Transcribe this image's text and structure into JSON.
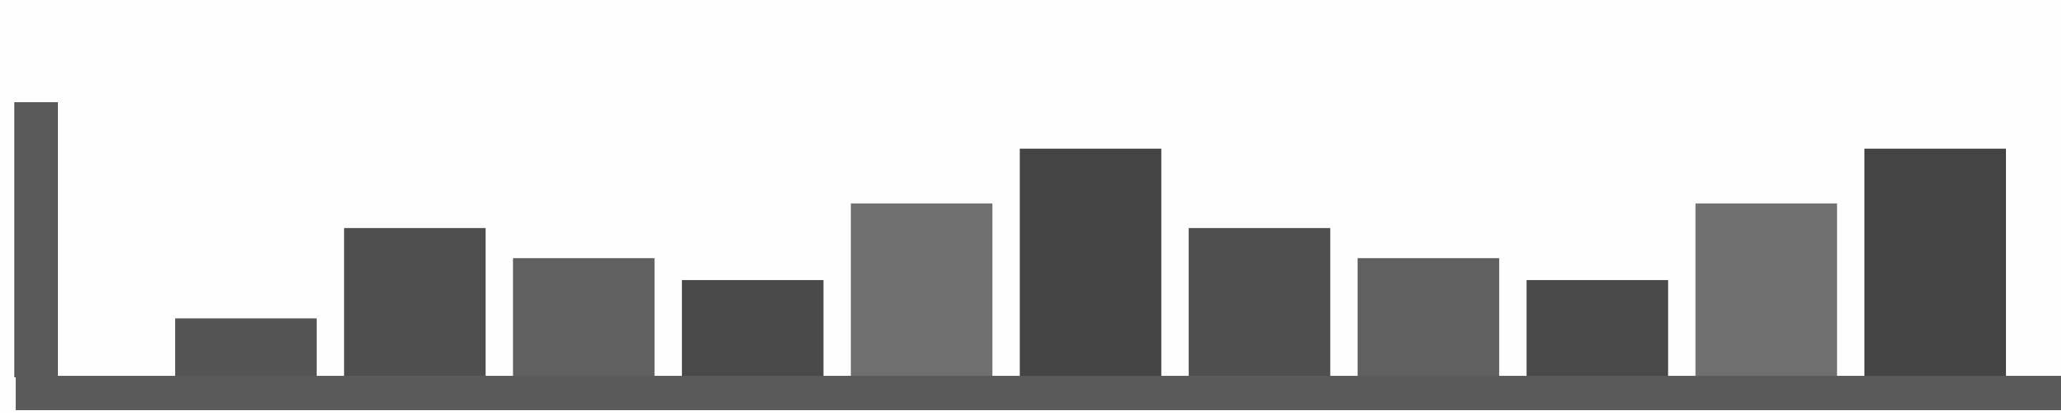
{
  "chart_data": {
    "type": "bar",
    "values": [
      21,
      54,
      43,
      35,
      63,
      83,
      54,
      43,
      35,
      63,
      83
    ],
    "colors": [
      "#555555",
      "#4f4f4f",
      "#606060",
      "#4a4a4a",
      "#707070",
      "#444444",
      "#4f4f4f",
      "#606060",
      "#4a4a4a",
      "#707070",
      "#444444"
    ],
    "ylim": [
      0,
      100
    ]
  }
}
